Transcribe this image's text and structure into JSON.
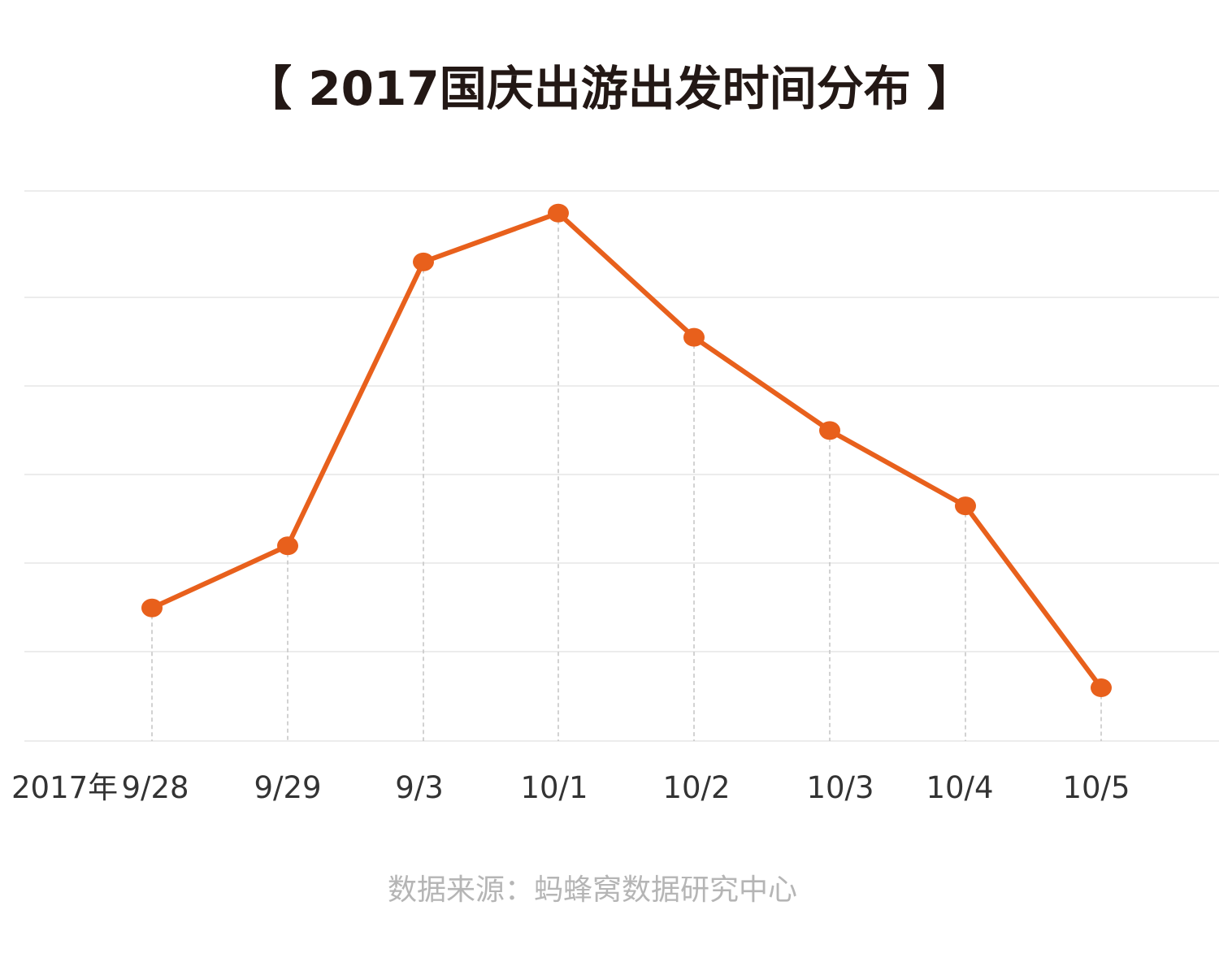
{
  "chart_data": {
    "type": "line",
    "title": "【 2017国庆出游出发时间分布 】",
    "year_prefix": "2017年",
    "categories": [
      "9/28",
      "9/29",
      "9/3",
      "10/1",
      "10/2",
      "10/3",
      "10/4",
      "10/5"
    ],
    "series": [
      {
        "values": [
          1.5,
          2.2,
          5.4,
          5.95,
          4.55,
          3.5,
          2.65,
          0.6
        ]
      }
    ],
    "ylim": [
      0,
      6.2
    ],
    "grid": true,
    "line_color": "#e8601c",
    "source": "数据来源：蚂蜂窝数据研究中心"
  }
}
